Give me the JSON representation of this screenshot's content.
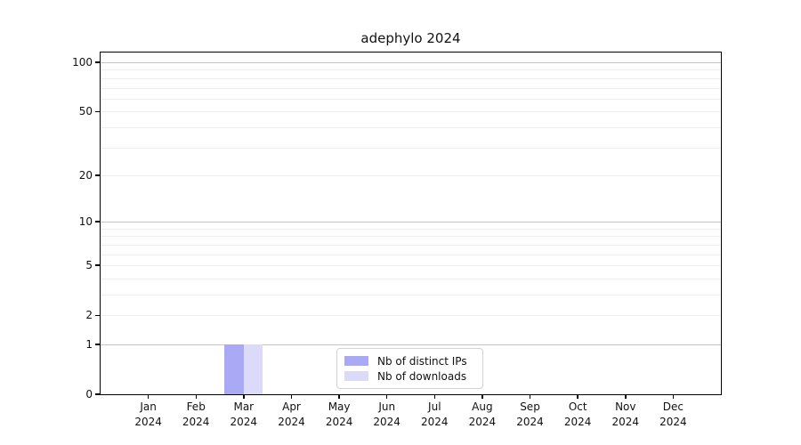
{
  "chart_data": {
    "type": "bar",
    "title": "adephylo 2024",
    "categories": [
      "Jan 2024",
      "Feb 2024",
      "Mar 2024",
      "Apr 2024",
      "May 2024",
      "Jun 2024",
      "Jul 2024",
      "Aug 2024",
      "Sep 2024",
      "Oct 2024",
      "Nov 2024",
      "Dec 2024"
    ],
    "series": [
      {
        "name": "Nb of distinct IPs",
        "color": "#aaa9f5",
        "values": [
          0,
          0,
          1,
          0,
          0,
          0,
          0,
          0,
          0,
          0,
          0,
          0
        ]
      },
      {
        "name": "Nb of downloads",
        "color": "#dbdaf8",
        "values": [
          0,
          0,
          1,
          0,
          0,
          0,
          0,
          0,
          0,
          0,
          0,
          0
        ]
      }
    ],
    "xlabel": "",
    "ylabel": "",
    "yscale": "log1p",
    "ylim": [
      0,
      115
    ],
    "yticks": [
      0,
      1,
      2,
      5,
      10,
      20,
      50,
      100
    ],
    "major_gridlines": [
      1,
      10,
      100
    ],
    "minor_gridlines": [
      2,
      3,
      4,
      5,
      6,
      7,
      8,
      9,
      20,
      30,
      40,
      50,
      60,
      70,
      80,
      90
    ],
    "grid": "horizontal",
    "legend": {
      "position": "bottom-center-inside"
    }
  },
  "colors": {
    "background": "#ffffff",
    "spine": "#000000",
    "major_grid": "#c4c4c4",
    "minor_grid": "#efefef",
    "text": "#111111"
  }
}
